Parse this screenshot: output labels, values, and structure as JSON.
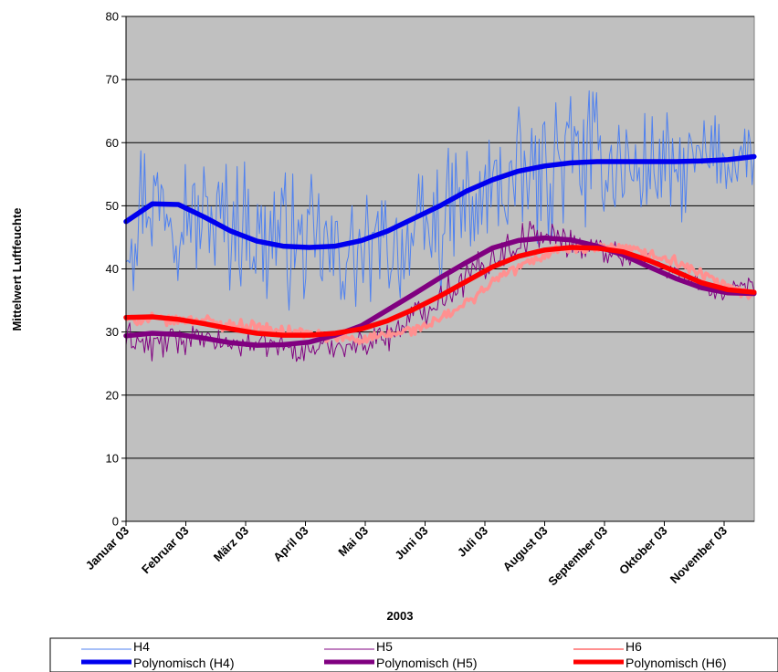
{
  "chart_data": {
    "type": "line",
    "xlabel": "2003",
    "ylabel": "Mittelwert Luftfeuchte",
    "ylim": [
      0,
      80
    ],
    "yticks": [
      0,
      10,
      20,
      30,
      40,
      50,
      60,
      70,
      80
    ],
    "x_tick_labels": [
      "Januar 03",
      "Februar 03",
      "März 03",
      "April 03",
      "Mai 03",
      "Juni 03",
      "Juli 03",
      "August 03",
      "September 03",
      "Oktober 03",
      "November 03"
    ],
    "grid": "horizontal",
    "plot_background": "#c0c0c0",
    "legend_position": "bottom",
    "series": [
      {
        "name": "H4",
        "kind": "daily",
        "color": "#4f81f0",
        "mean": [
          47,
          52,
          50,
          48,
          47,
          46,
          45,
          44,
          43,
          42,
          43,
          44,
          45,
          48,
          50,
          53,
          55,
          57,
          58,
          57,
          56,
          55,
          56,
          57,
          57,
          58
        ],
        "amplitude": [
          13,
          12,
          12,
          11,
          11,
          12,
          12,
          11,
          12,
          10,
          9,
          10,
          11,
          12,
          12,
          12,
          13,
          12,
          12,
          11,
          11,
          10,
          9,
          8,
          7,
          6
        ]
      },
      {
        "name": "H5",
        "kind": "daily",
        "color": "#800080",
        "mean": [
          29,
          28,
          29,
          29,
          28,
          28,
          28,
          27,
          28,
          28,
          29,
          31,
          34,
          37,
          40,
          43,
          45,
          45,
          44,
          43,
          42,
          41,
          39,
          37,
          36,
          37
        ],
        "amplitude": [
          3,
          3,
          3,
          2,
          2,
          2,
          2,
          2,
          2,
          2,
          3,
          3,
          3,
          3,
          3,
          3,
          3,
          3,
          3,
          2,
          2,
          2,
          2,
          2,
          2,
          2
        ]
      },
      {
        "name": "H6",
        "kind": "daily",
        "color": "#ff9090",
        "mean": [
          32,
          32,
          32,
          32,
          31,
          31,
          30,
          30,
          29,
          29,
          29,
          30,
          31,
          33,
          36,
          39,
          41,
          43,
          43,
          43,
          43,
          42,
          41,
          39,
          37,
          36
        ],
        "amplitude": [
          1,
          1,
          1,
          1,
          1,
          1,
          1,
          1,
          1,
          1,
          1,
          1,
          1,
          1,
          1,
          1,
          1,
          1,
          1,
          1,
          1,
          1,
          1,
          1,
          1,
          1
        ]
      },
      {
        "name": "Polynomisch (H4)",
        "kind": "trend",
        "color": "#0000ee",
        "x": [
          0,
          0.5,
          1,
          1.5,
          2,
          2.5,
          3,
          3.5,
          4,
          4.5,
          5,
          5.5,
          6,
          6.5,
          7,
          7.5,
          8,
          8.5,
          9,
          9.5,
          10,
          10.5,
          11,
          11.5,
          12
        ],
        "values": [
          47.5,
          50.3,
          50.2,
          48.2,
          46,
          44.4,
          43.6,
          43.4,
          43.6,
          44.5,
          46,
          48,
          50,
          52.3,
          54.1,
          55.5,
          56.3,
          56.8,
          57,
          57,
          57,
          57,
          57.1,
          57.3,
          57.8
        ]
      },
      {
        "name": "Polynomisch (H5)",
        "kind": "trend",
        "color": "#800080",
        "x": [
          0,
          0.5,
          1,
          1.5,
          2,
          2.5,
          3,
          3.5,
          4,
          4.5,
          5,
          5.5,
          6,
          6.5,
          7,
          7.5,
          8,
          8.5,
          9,
          9.5,
          10,
          10.5,
          11,
          11.5,
          12
        ],
        "values": [
          29.4,
          29.8,
          29.6,
          29,
          28.3,
          27.9,
          28,
          28.4,
          29.5,
          31,
          33.5,
          36,
          38.6,
          41,
          43.3,
          44.5,
          44.9,
          44.6,
          43.6,
          42.2,
          40.3,
          38.5,
          37,
          36.2,
          36.1
        ]
      },
      {
        "name": "Polynomisch (H6)",
        "kind": "trend",
        "color": "#ff0000",
        "x": [
          0,
          0.5,
          1,
          1.5,
          2,
          2.5,
          3,
          3.5,
          4,
          4.5,
          5,
          5.5,
          6,
          6.5,
          7,
          7.5,
          8,
          8.5,
          9,
          9.5,
          10,
          10.5,
          11,
          11.5,
          12
        ],
        "values": [
          32.3,
          32.4,
          32,
          31.3,
          30.5,
          29.8,
          29.5,
          29.5,
          29.8,
          30.5,
          31.8,
          33.6,
          35.7,
          38,
          40.3,
          42,
          43,
          43.4,
          43.3,
          42.7,
          41.3,
          39.6,
          37.8,
          36.7,
          36.3
        ]
      }
    ]
  }
}
